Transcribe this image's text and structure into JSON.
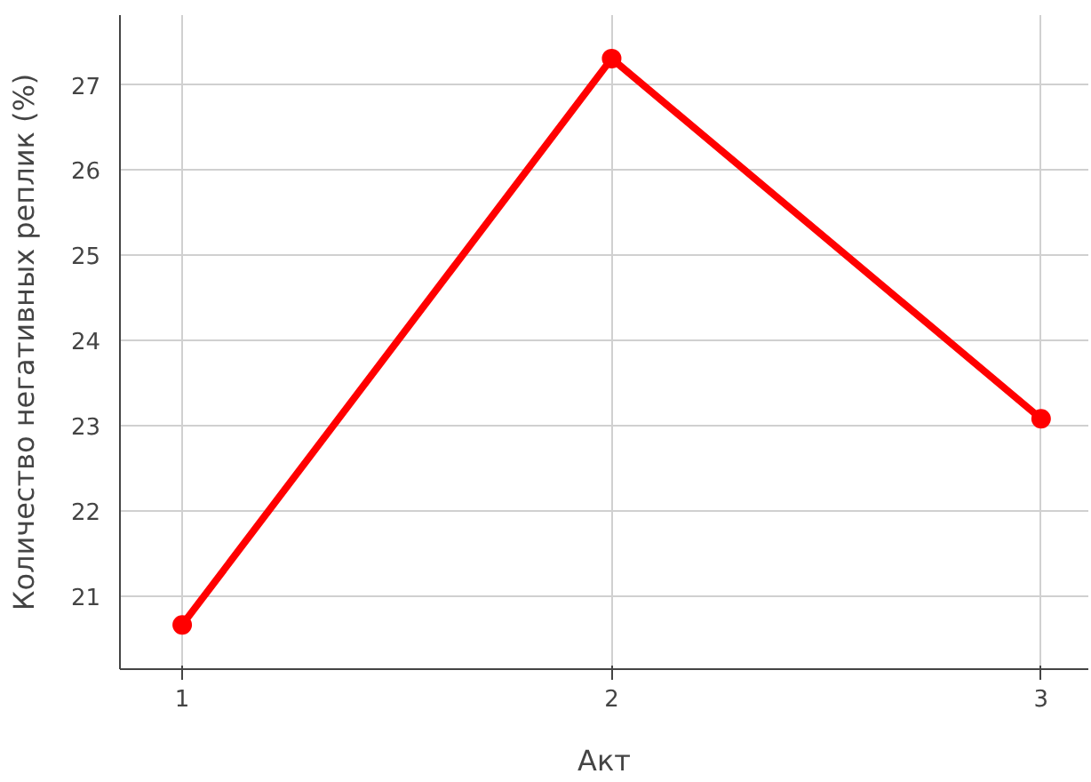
{
  "chart_data": {
    "type": "line",
    "xlabel": "Акт",
    "ylabel": "Количество негативных реплик (%)",
    "x": [
      1,
      2,
      3
    ],
    "series": [
      {
        "color": "#ff0000",
        "values": [
          20.66,
          27.31,
          23.08
        ]
      }
    ],
    "xlim": [
      0.855,
      3.11
    ],
    "xticks": [
      1,
      2,
      3
    ],
    "ylim": [
      20.14,
      27.82
    ],
    "yticks": [
      21,
      22,
      23,
      24,
      25,
      26,
      27
    ],
    "grid": true,
    "marker": "circle",
    "line_style": "solid"
  }
}
